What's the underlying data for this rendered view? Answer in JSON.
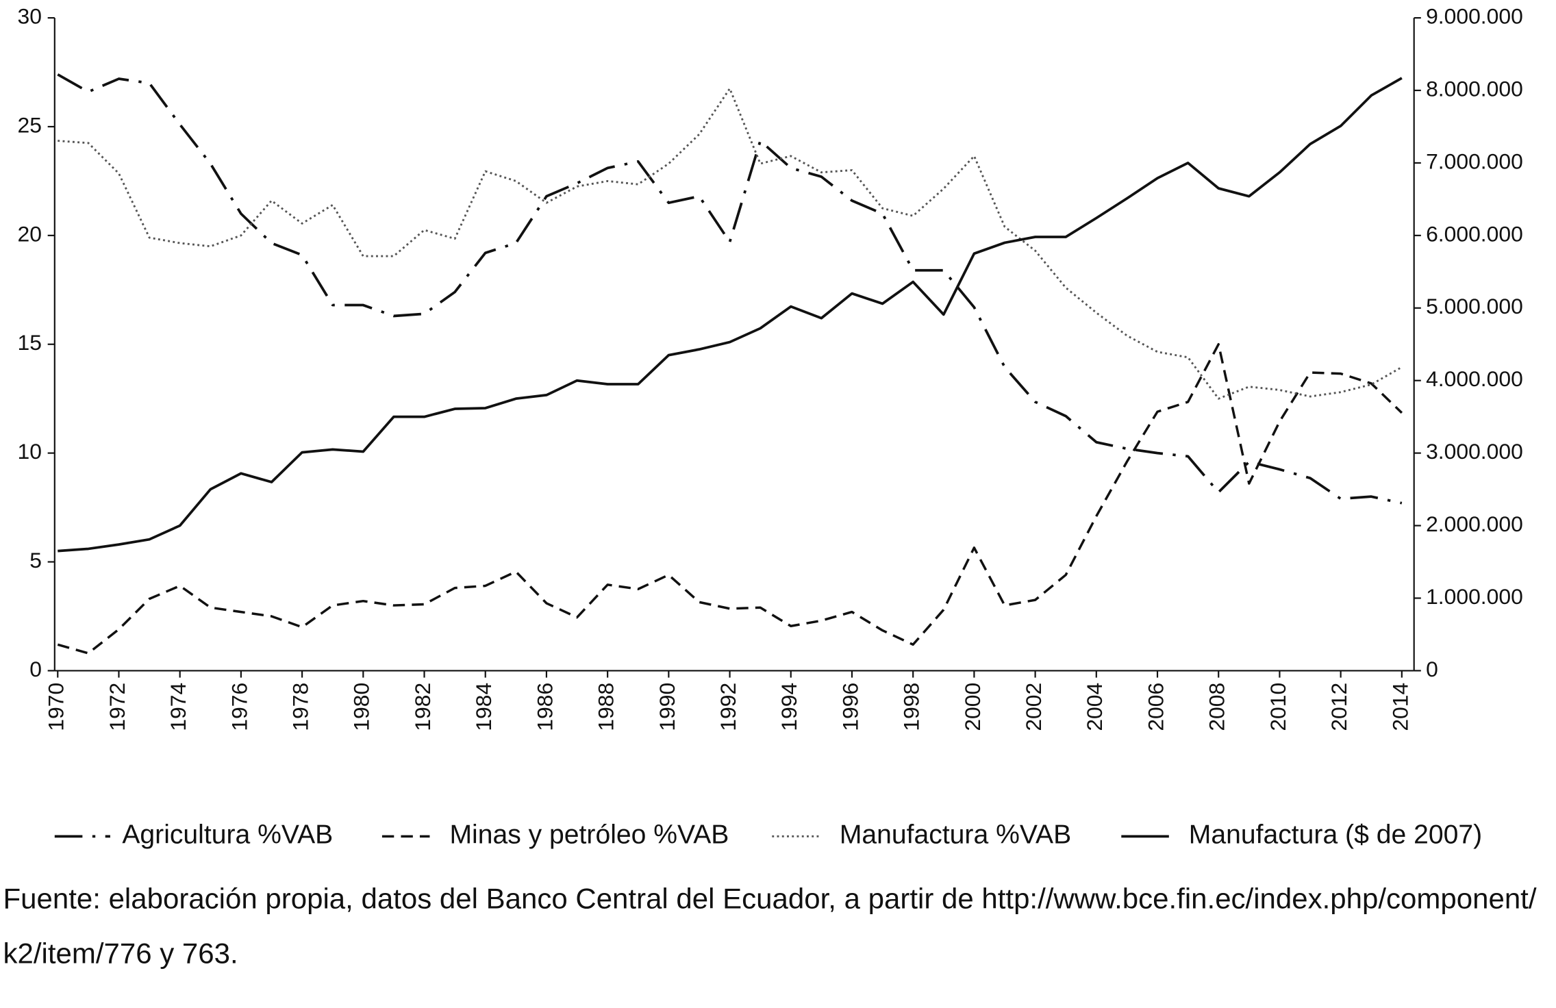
{
  "chart_data": {
    "type": "line",
    "x": [
      1970,
      1971,
      1972,
      1973,
      1974,
      1975,
      1976,
      1977,
      1978,
      1979,
      1980,
      1981,
      1982,
      1983,
      1984,
      1985,
      1986,
      1987,
      1988,
      1989,
      1990,
      1991,
      1992,
      1993,
      1994,
      1995,
      1996,
      1997,
      1998,
      1999,
      2000,
      2001,
      2002,
      2003,
      2004,
      2005,
      2006,
      2007,
      2008,
      2009,
      2010,
      2011,
      2012,
      2013,
      2014
    ],
    "xlim": [
      1969.9,
      2014.4
    ],
    "xticks": [
      1970,
      1972,
      1974,
      1976,
      1978,
      1980,
      1982,
      1984,
      1986,
      1988,
      1990,
      1992,
      1994,
      1996,
      1998,
      2000,
      2002,
      2004,
      2006,
      2008,
      2010,
      2012,
      2014
    ],
    "ylim": [
      0,
      30
    ],
    "yticks": [
      0,
      5,
      10,
      15,
      20,
      25,
      30
    ],
    "y2lim": [
      0,
      9000000
    ],
    "y2ticks": [
      0,
      {
        "value": 1000000,
        "label": "1.000.000"
      },
      {
        "value": 2000000,
        "label": "2.000.000"
      },
      {
        "value": 3000000,
        "label": "3.000.000"
      },
      {
        "value": 4000000,
        "label": "4.000.000"
      },
      {
        "value": 5000000,
        "label": "5.000.000"
      },
      {
        "value": 6000000,
        "label": "6.000.000"
      },
      {
        "value": 7000000,
        "label": "7.000.000"
      },
      {
        "value": 8000000,
        "label": "8.000.000"
      },
      {
        "value": 9000000,
        "label": "9.000.000"
      }
    ],
    "series": [
      {
        "name": "Agricultura %VAB",
        "color": "#111111",
        "style": "dashdot",
        "values": [
          27.4,
          26.6,
          27.2,
          27.0,
          25.1,
          23.3,
          21.0,
          19.65,
          19.1,
          16.8,
          16.8,
          16.3,
          16.4,
          17.4,
          19.2,
          19.65,
          21.8,
          22.4,
          23.1,
          23.4,
          21.5,
          21.8,
          19.7,
          24.35,
          23.1,
          22.7,
          21.6,
          21.0,
          18.4,
          18.4,
          16.7,
          13.95,
          12.35,
          11.7,
          10.5,
          10.2,
          10.0,
          9.85,
          8.2,
          9.6,
          9.25,
          8.85,
          7.9,
          8.0,
          7.7
        ]
      },
      {
        "name": "Minas y petróleo %VAB",
        "color": "#111111",
        "style": "dashed",
        "values": [
          1.2,
          0.8,
          1.9,
          3.3,
          3.9,
          2.9,
          2.7,
          2.5,
          2.0,
          3.0,
          3.2,
          3.0,
          3.05,
          3.8,
          3.9,
          4.55,
          3.1,
          2.45,
          3.95,
          3.75,
          4.4,
          3.15,
          2.85,
          2.9,
          2.05,
          2.3,
          2.7,
          1.85,
          1.2,
          2.8,
          5.65,
          3.0,
          3.25,
          4.4,
          7.1,
          9.6,
          11.9,
          12.35,
          15.0,
          8.6,
          11.45,
          13.7,
          13.65,
          13.2,
          11.85
        ]
      },
      {
        "name": "Manufactura %VAB",
        "color": "#555555",
        "style": "dotted",
        "values": [
          24.35,
          24.25,
          22.85,
          19.9,
          19.65,
          19.5,
          20.0,
          21.6,
          20.55,
          21.4,
          19.05,
          19.05,
          20.25,
          19.85,
          22.95,
          22.5,
          21.5,
          22.25,
          22.5,
          22.35,
          23.3,
          24.65,
          26.75,
          23.3,
          23.65,
          22.9,
          23.0,
          21.25,
          20.9,
          22.15,
          23.65,
          20.4,
          19.3,
          17.6,
          16.45,
          15.4,
          14.65,
          14.4,
          12.5,
          13.05,
          12.9,
          12.6,
          12.8,
          13.15,
          13.95
        ]
      },
      {
        "name": "Manufactura ($ de 2007)",
        "color": "#111111",
        "style": "solid",
        "axis": "y2",
        "values": [
          1650000,
          1680000,
          1740000,
          1810000,
          2000000,
          2500000,
          2720000,
          2600000,
          3010000,
          3050000,
          3020000,
          3500000,
          3500000,
          3610000,
          3620000,
          3750000,
          3800000,
          4000000,
          3950000,
          3950000,
          4350000,
          4430000,
          4530000,
          4720000,
          5020000,
          4860000,
          5200000,
          5060000,
          5360000,
          4910000,
          5750000,
          5900000,
          5980000,
          5980000,
          6240000,
          6510000,
          6790000,
          7000000,
          6650000,
          6540000,
          6870000,
          7260000,
          7510000,
          7930000,
          8170000
        ]
      }
    ],
    "source": [
      "Fuente: elaboración propia, datos del Banco Central del Ecuador, a partir de http://www.bce.fin.ec/index.php/component/",
      "k2/item/776  y 763."
    ]
  }
}
